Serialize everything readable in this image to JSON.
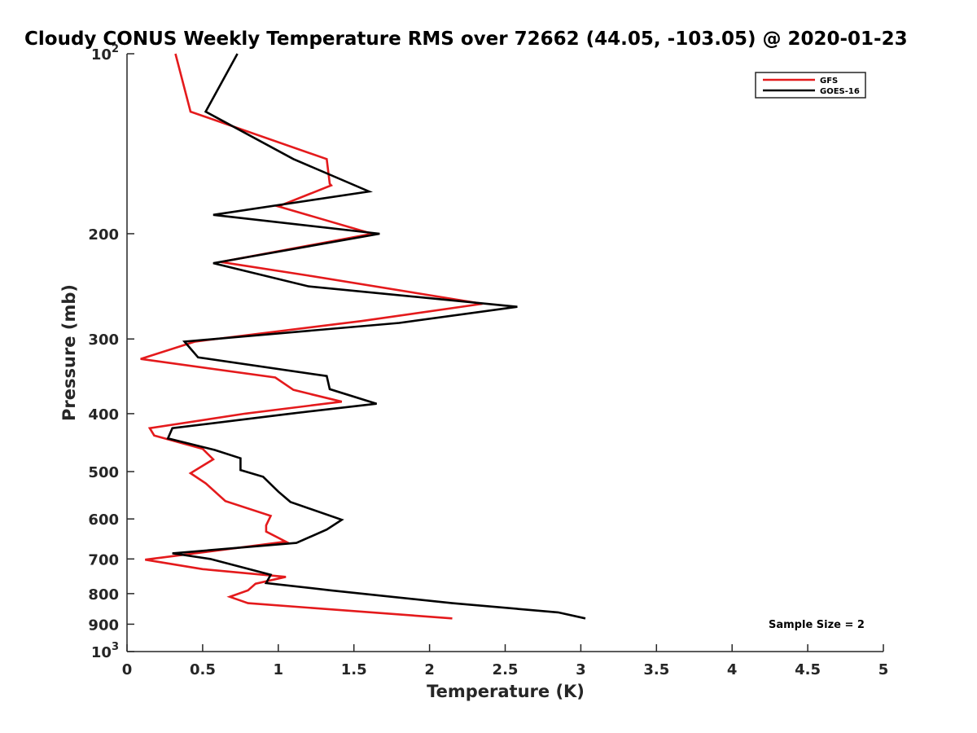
{
  "chart_data": {
    "type": "line",
    "title": "Cloudy CONUS Weekly Temperature RMS over 72662 (44.05, -103.05) @ 2020-01-23",
    "xlabel": "Temperature (K)",
    "ylabel": "Pressure (mb)",
    "xlim": [
      0,
      5
    ],
    "ylim": [
      100,
      1000
    ],
    "y_scale": "log",
    "y_reversed": true,
    "grid": false,
    "legend_position": "top-right",
    "x_ticks": [
      {
        "value": 0,
        "label": "0"
      },
      {
        "value": 0.5,
        "label": "0.5"
      },
      {
        "value": 1,
        "label": "1"
      },
      {
        "value": 1.5,
        "label": "1.5"
      },
      {
        "value": 2,
        "label": "2"
      },
      {
        "value": 2.5,
        "label": "2.5"
      },
      {
        "value": 3,
        "label": "3"
      },
      {
        "value": 3.5,
        "label": "3.5"
      },
      {
        "value": 4,
        "label": "4"
      },
      {
        "value": 4.5,
        "label": "4.5"
      },
      {
        "value": 5,
        "label": "5"
      }
    ],
    "y_ticks": [
      {
        "value": 100,
        "base": "10",
        "exp": "2"
      },
      {
        "value": 200,
        "base": "200",
        "exp": ""
      },
      {
        "value": 300,
        "base": "300",
        "exp": ""
      },
      {
        "value": 400,
        "base": "400",
        "exp": ""
      },
      {
        "value": 500,
        "base": "500",
        "exp": ""
      },
      {
        "value": 600,
        "base": "600",
        "exp": ""
      },
      {
        "value": 700,
        "base": "700",
        "exp": ""
      },
      {
        "value": 800,
        "base": "800",
        "exp": ""
      },
      {
        "value": 900,
        "base": "900",
        "exp": ""
      },
      {
        "value": 1000,
        "base": "10",
        "exp": "3"
      }
    ],
    "series": [
      {
        "name": "GFS",
        "color": "#e41a1c",
        "points": [
          [
            0.32,
            100
          ],
          [
            0.42,
            125
          ],
          [
            1.32,
            150
          ],
          [
            1.34,
            165
          ],
          [
            1.35,
            166
          ],
          [
            1.0,
            180
          ],
          [
            1.62,
            200
          ],
          [
            0.62,
            223
          ],
          [
            1.2,
            235
          ],
          [
            2.35,
            262
          ],
          [
            1.55,
            280
          ],
          [
            0.45,
            303
          ],
          [
            0.09,
            324
          ],
          [
            0.98,
            348
          ],
          [
            1.1,
            365
          ],
          [
            1.42,
            382
          ],
          [
            0.78,
            400
          ],
          [
            0.15,
            423
          ],
          [
            0.18,
            435
          ],
          [
            0.5,
            458
          ],
          [
            0.57,
            477
          ],
          [
            0.42,
            503
          ],
          [
            0.52,
            523
          ],
          [
            0.65,
            560
          ],
          [
            0.95,
            593
          ],
          [
            0.92,
            615
          ],
          [
            0.92,
            630
          ],
          [
            1.05,
            655
          ],
          [
            0.12,
            702
          ],
          [
            0.5,
            728
          ],
          [
            1.05,
            750
          ],
          [
            0.85,
            770
          ],
          [
            0.8,
            790
          ],
          [
            0.68,
            810
          ],
          [
            0.8,
            830
          ],
          [
            2.15,
            880
          ]
        ]
      },
      {
        "name": "GOES-16",
        "color": "#000000",
        "points": [
          [
            0.73,
            100
          ],
          [
            0.52,
            125
          ],
          [
            1.1,
            150
          ],
          [
            1.6,
            170
          ],
          [
            0.57,
            186
          ],
          [
            1.67,
            200
          ],
          [
            0.57,
            224
          ],
          [
            1.2,
            245
          ],
          [
            2.58,
            265
          ],
          [
            1.8,
            282
          ],
          [
            0.38,
            303
          ],
          [
            0.47,
            322
          ],
          [
            1.32,
            346
          ],
          [
            1.34,
            364
          ],
          [
            1.65,
            385
          ],
          [
            1.08,
            400
          ],
          [
            0.3,
            423
          ],
          [
            0.27,
            440
          ],
          [
            0.58,
            460
          ],
          [
            0.75,
            475
          ],
          [
            0.75,
            497
          ],
          [
            0.9,
            510
          ],
          [
            1.0,
            540
          ],
          [
            1.08,
            562
          ],
          [
            1.42,
            602
          ],
          [
            1.32,
            625
          ],
          [
            1.12,
            658
          ],
          [
            0.3,
            685
          ],
          [
            0.55,
            700
          ],
          [
            0.95,
            744
          ],
          [
            0.92,
            768
          ],
          [
            1.35,
            790
          ],
          [
            2.15,
            830
          ],
          [
            2.85,
            860
          ],
          [
            3.03,
            880
          ]
        ]
      }
    ],
    "annotation": "Sample Size = 2"
  }
}
